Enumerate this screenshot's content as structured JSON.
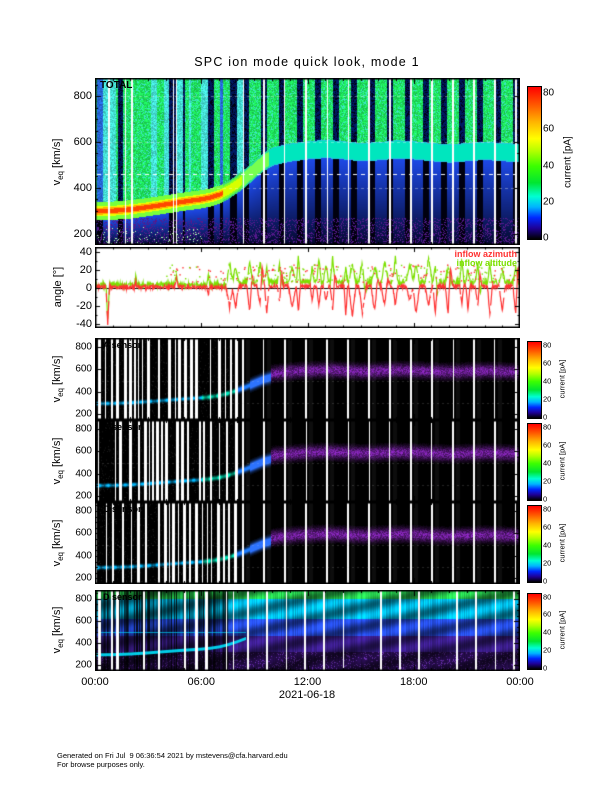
{
  "title": "SPC ion mode quick look, mode 1",
  "x_axis": {
    "date_label": "2021-06-18",
    "ticks": [
      {
        "hour": 0,
        "label": "00:00"
      },
      {
        "hour": 6,
        "label": "06:00"
      },
      {
        "hour": 12,
        "label": "12:00"
      },
      {
        "hour": 18,
        "label": "18:00"
      },
      {
        "hour": 24,
        "label": "00:00"
      }
    ]
  },
  "footer": {
    "line1": "Generated on Fri Jul  9 06:36:54 2021 by mstevens@cfa.harvard.edu",
    "line2": "For browse purposes only."
  },
  "colors": {
    "inflow_azimuth": "#ff3232",
    "inflow_altitude": "#7ce000",
    "axis": "#000000",
    "background": "#ffffff"
  },
  "chart_data": {
    "type": "heatmap",
    "title": "SPC ion mode quick look, mode 1",
    "date": "2021-06-18",
    "time_range_hours": [
      0,
      24
    ],
    "x_ticks_hours": [
      0,
      6,
      12,
      18,
      24
    ],
    "velocity_range_kms": [
      150,
      880
    ],
    "velocity_ticks": [
      200,
      400,
      600,
      800
    ],
    "angle_range_deg": [
      -45,
      45
    ],
    "angle_ticks": [
      40,
      20,
      0,
      -20,
      -40
    ],
    "ylabel": {
      "main": "v",
      "sub": "eq",
      "unit": "[km/s]"
    },
    "angle_ylabel": "angle [°]",
    "colorbar": {
      "label": "current [pA]",
      "range_pA": [
        0,
        84
      ],
      "ticks": [
        0,
        20,
        40,
        60,
        80
      ]
    },
    "panel_labels": {
      "total": "TOTAL",
      "a": "A sensor",
      "b": "B sensor",
      "c": "C sensor",
      "d": "D sensor"
    },
    "legend": [
      {
        "label": "inflow azimuth",
        "color": "#ff3232"
      },
      {
        "label": "inflow altitude",
        "color": "#7ce000"
      }
    ],
    "bulk_velocity_trend_kms": [
      [
        0,
        300
      ],
      [
        1,
        302
      ],
      [
        2,
        308
      ],
      [
        3,
        318
      ],
      [
        4,
        330
      ],
      [
        5,
        342
      ],
      [
        6,
        352
      ],
      [
        6.5,
        360
      ],
      [
        7,
        372
      ],
      [
        7.5,
        392
      ],
      [
        8,
        418
      ],
      [
        8.5,
        448
      ],
      [
        9,
        482
      ],
      [
        9.5,
        515
      ],
      [
        10,
        538
      ],
      [
        10.5,
        548
      ],
      [
        11,
        556
      ],
      [
        12,
        566
      ],
      [
        13,
        572
      ],
      [
        14,
        566
      ],
      [
        15,
        558
      ],
      [
        16,
        562
      ],
      [
        17,
        570
      ],
      [
        18,
        566
      ],
      [
        19,
        558
      ],
      [
        20,
        552
      ],
      [
        21,
        558
      ],
      [
        22,
        564
      ],
      [
        23,
        558
      ],
      [
        24,
        554
      ]
    ],
    "events": {
      "slow_wind_ridge_kms": 300,
      "transition_start_hour": 8.3,
      "fast_wind_start_hour": 9.8,
      "spike_activity_start_hour": 7.5,
      "big_spike": {
        "hour": 0.72,
        "azimuth_deg": -41,
        "altitude_deg": -37
      },
      "dashed_reference_line_kms": 460,
      "d_sensor_line_kms": 505,
      "sensor_fast_band_center_kms": 600
    },
    "angle_series": [
      {
        "name": "inflow azimuth",
        "color": "#ff3232",
        "quiet_range_deg": [
          -5,
          8
        ],
        "active_spike_range_deg": [
          -35,
          25
        ]
      },
      {
        "name": "inflow altitude",
        "color": "#7ce000",
        "quiet_range_deg": [
          -2,
          10
        ],
        "active_spike_range_deg": [
          -20,
          28
        ]
      }
    ],
    "noise_seed": 7
  }
}
